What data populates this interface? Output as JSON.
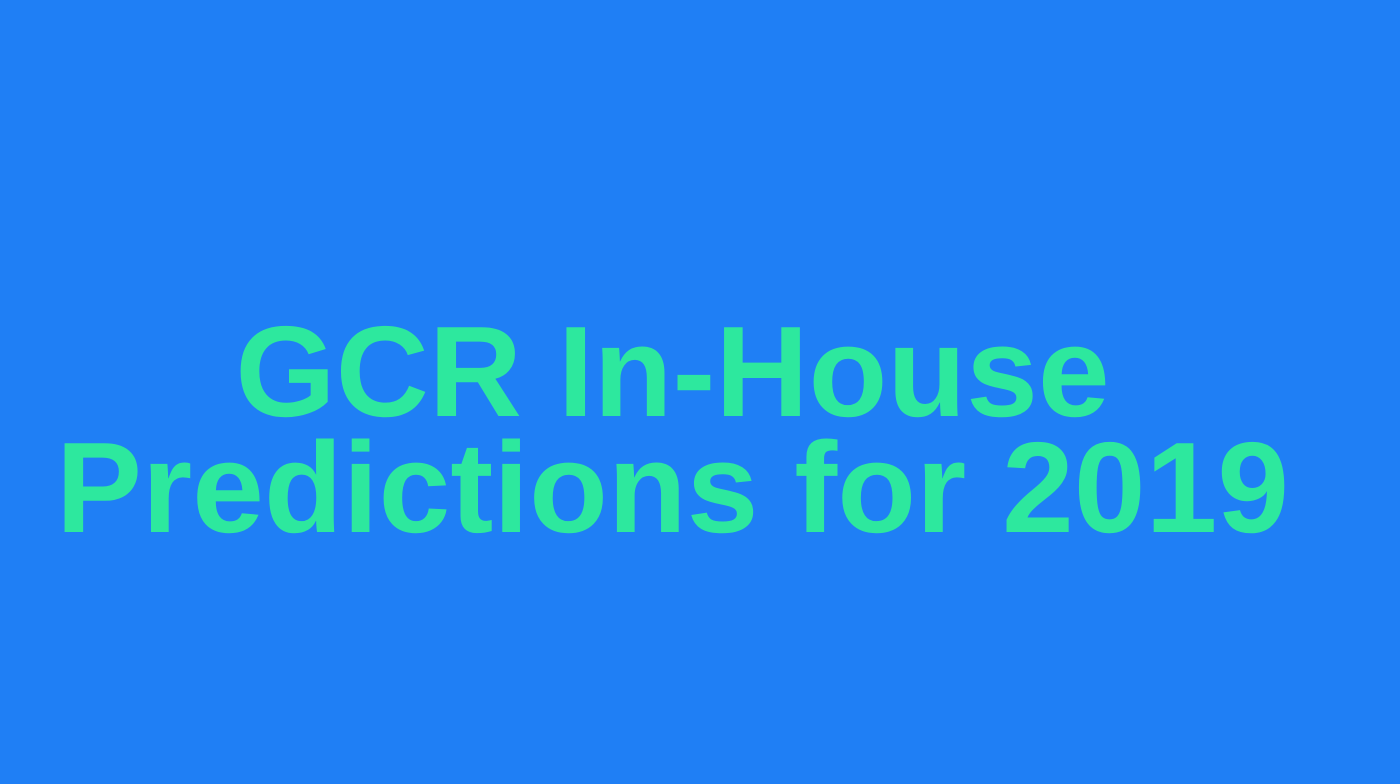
{
  "slide": {
    "title_lines": [
      "GCR In-House",
      "Predictions for 2019"
    ],
    "background_color": "#1f7ff5",
    "text_color": "#2de89e"
  }
}
